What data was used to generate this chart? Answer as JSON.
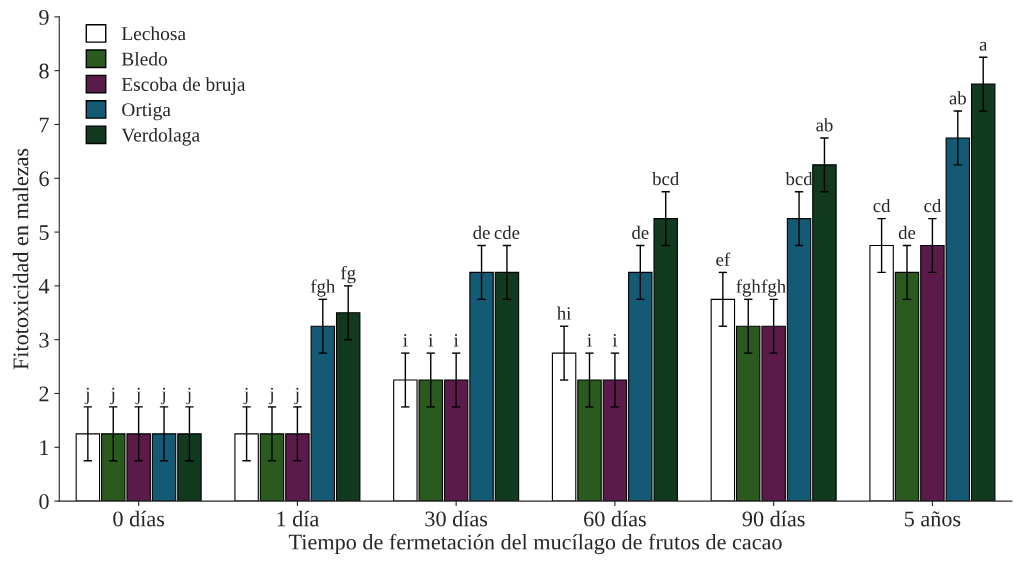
{
  "chart_data": {
    "type": "bar",
    "xlabel": "Tiempo de fermetación del mucílago de frutos de cacao",
    "ylabel": "Fitotoxicidad en malezas",
    "categories": [
      "0 días",
      "1 día",
      "30 días",
      "60 días",
      "90 días",
      "5 años"
    ],
    "series": [
      {
        "name": "Lechosa",
        "color": "#ffffff",
        "values": [
          1.25,
          1.25,
          2.25,
          2.75,
          3.75,
          4.75
        ],
        "errors": [
          0.5,
          0.5,
          0.5,
          0.5,
          0.5,
          0.5
        ],
        "value_labels": [
          "j",
          "j",
          "i",
          "hi",
          "ef",
          "cd"
        ]
      },
      {
        "name": "Bledo",
        "color": "#2b5a1f",
        "values": [
          1.25,
          1.25,
          2.25,
          2.25,
          3.25,
          4.25
        ],
        "errors": [
          0.5,
          0.5,
          0.5,
          0.5,
          0.5,
          0.5
        ],
        "value_labels": [
          "j",
          "j",
          "i",
          "i",
          "fgh",
          "de"
        ]
      },
      {
        "name": "Escoba de bruja",
        "color": "#5a1b4b",
        "values": [
          1.25,
          1.25,
          2.25,
          2.25,
          3.25,
          4.75
        ],
        "errors": [
          0.5,
          0.5,
          0.5,
          0.5,
          0.5,
          0.5
        ],
        "value_labels": [
          "j",
          "j",
          "i",
          "i",
          "fgh",
          "cd"
        ]
      },
      {
        "name": "Ortiga",
        "color": "#155a74",
        "values": [
          1.25,
          3.25,
          4.25,
          4.25,
          5.25,
          6.75
        ],
        "errors": [
          0.5,
          0.5,
          0.5,
          0.5,
          0.5,
          0.5
        ],
        "value_labels": [
          "j",
          "fgh",
          "de",
          "de",
          "bcd",
          "ab"
        ]
      },
      {
        "name": "Verdolaga",
        "color": "#113a1e",
        "values": [
          1.25,
          3.5,
          4.25,
          5.25,
          6.25,
          7.75
        ],
        "errors": [
          0.5,
          0.5,
          0.5,
          0.5,
          0.5,
          0.5
        ],
        "value_labels": [
          "j",
          "fg",
          "cde",
          "bcd",
          "ab",
          "a"
        ]
      }
    ],
    "ylim": [
      0,
      9
    ],
    "yticks": [
      0,
      1,
      2,
      3,
      4,
      5,
      6,
      7,
      8,
      9
    ],
    "grid": false,
    "legend": "top left"
  }
}
